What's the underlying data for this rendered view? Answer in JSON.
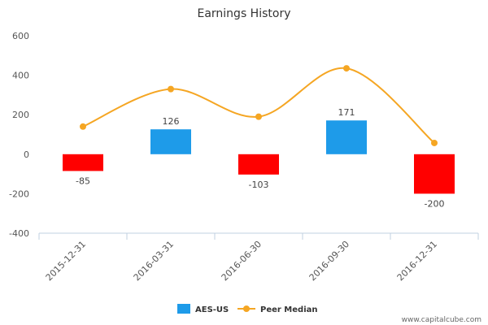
{
  "chart_data": {
    "type": "bar",
    "title": "Earnings History",
    "categories": [
      "2015-12-31",
      "2016-03-31",
      "2016-06-30",
      "2016-09-30",
      "2016-12-31"
    ],
    "series": [
      {
        "name": "AES-US",
        "type": "bar",
        "values": [
          -85,
          126,
          -103,
          171,
          -200
        ],
        "data_labels": [
          "-85",
          "126",
          "-103",
          "171",
          "-200"
        ],
        "color_positive": "#1e9be9",
        "color_negative": "#ff0000"
      },
      {
        "name": "Peer Median",
        "type": "line",
        "values": [
          140,
          330,
          190,
          435,
          57
        ],
        "color": "#f5a623"
      }
    ],
    "y_ticks": [
      "600",
      "400",
      "200",
      "0",
      "-200",
      "-400"
    ],
    "ylim": [
      -400,
      600
    ],
    "xlabel": "",
    "ylabel": "",
    "grid": false,
    "legend_position": "bottom-center",
    "legend_swatch_color": "#1e9be9"
  },
  "credit": "www.capitalcube.com"
}
